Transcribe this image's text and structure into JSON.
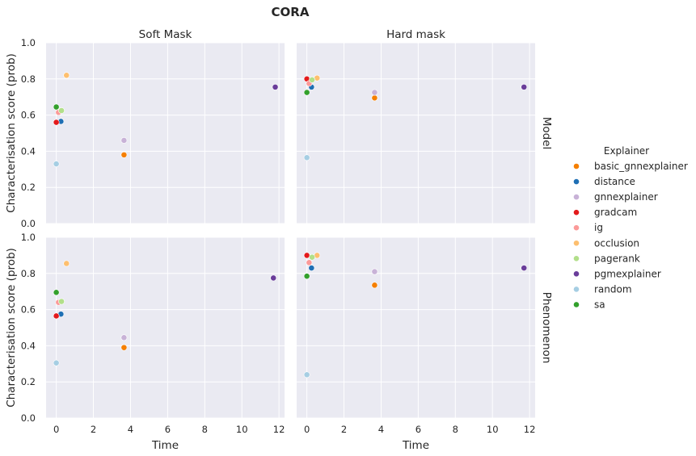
{
  "chart_data": {
    "type": "scatter",
    "title": "CORA",
    "xlabel": "Time",
    "ylabel": "Characterisation score (prob)",
    "xlim": [
      -0.55,
      12.3
    ],
    "ylim": [
      0,
      1
    ],
    "xticks": [
      "0",
      "2",
      "4",
      "6",
      "8",
      "10",
      "12"
    ],
    "yticks": [
      "0.0",
      "0.2",
      "0.4",
      "0.6",
      "0.8",
      "1.0"
    ],
    "columns": [
      "Soft Mask",
      "Hard mask"
    ],
    "rows": [
      "Model",
      "Phenomenon"
    ],
    "legend": {
      "title": "Explainer",
      "placement": "right",
      "entries": [
        {
          "name": "basic_gnnexplainer",
          "color": "#f57f00"
        },
        {
          "name": "distance",
          "color": "#1f6fb4"
        },
        {
          "name": "gnnexplainer",
          "color": "#c8b2d7"
        },
        {
          "name": "gradcam",
          "color": "#e31a1c"
        },
        {
          "name": "ig",
          "color": "#fb9a99"
        },
        {
          "name": "occlusion",
          "color": "#fdbf6f"
        },
        {
          "name": "pagerank",
          "color": "#b2df8a"
        },
        {
          "name": "pgmexplainer",
          "color": "#6a3d9a"
        },
        {
          "name": "random",
          "color": "#a6cee3"
        },
        {
          "name": "sa",
          "color": "#33a02c"
        }
      ]
    },
    "panels": [
      {
        "row": "Model",
        "col": "Soft Mask",
        "points": [
          {
            "explainer": "basic_gnnexplainer",
            "x": 3.65,
            "y": 0.38
          },
          {
            "explainer": "distance",
            "x": 0.25,
            "y": 0.565
          },
          {
            "explainer": "gnnexplainer",
            "x": 3.65,
            "y": 0.46
          },
          {
            "explainer": "gradcam",
            "x": 0.0,
            "y": 0.56
          },
          {
            "explainer": "ig",
            "x": 0.12,
            "y": 0.615
          },
          {
            "explainer": "occlusion",
            "x": 0.55,
            "y": 0.82
          },
          {
            "explainer": "pagerank",
            "x": 0.28,
            "y": 0.625
          },
          {
            "explainer": "pgmexplainer",
            "x": 11.8,
            "y": 0.755
          },
          {
            "explainer": "random",
            "x": 0.0,
            "y": 0.33
          },
          {
            "explainer": "sa",
            "x": 0.0,
            "y": 0.645
          }
        ]
      },
      {
        "row": "Model",
        "col": "Hard mask",
        "points": [
          {
            "explainer": "basic_gnnexplainer",
            "x": 3.65,
            "y": 0.695
          },
          {
            "explainer": "distance",
            "x": 0.25,
            "y": 0.755
          },
          {
            "explainer": "gnnexplainer",
            "x": 3.65,
            "y": 0.725
          },
          {
            "explainer": "gradcam",
            "x": 0.0,
            "y": 0.8
          },
          {
            "explainer": "ig",
            "x": 0.12,
            "y": 0.775
          },
          {
            "explainer": "occlusion",
            "x": 0.55,
            "y": 0.805
          },
          {
            "explainer": "pagerank",
            "x": 0.28,
            "y": 0.795
          },
          {
            "explainer": "pgmexplainer",
            "x": 11.7,
            "y": 0.755
          },
          {
            "explainer": "random",
            "x": 0.0,
            "y": 0.365
          },
          {
            "explainer": "sa",
            "x": 0.0,
            "y": 0.725
          }
        ]
      },
      {
        "row": "Phenomenon",
        "col": "Soft Mask",
        "points": [
          {
            "explainer": "basic_gnnexplainer",
            "x": 3.65,
            "y": 0.39
          },
          {
            "explainer": "distance",
            "x": 0.25,
            "y": 0.575
          },
          {
            "explainer": "gnnexplainer",
            "x": 3.65,
            "y": 0.445
          },
          {
            "explainer": "gradcam",
            "x": 0.0,
            "y": 0.565
          },
          {
            "explainer": "ig",
            "x": 0.12,
            "y": 0.64
          },
          {
            "explainer": "occlusion",
            "x": 0.55,
            "y": 0.855
          },
          {
            "explainer": "pagerank",
            "x": 0.28,
            "y": 0.645
          },
          {
            "explainer": "pgmexplainer",
            "x": 11.7,
            "y": 0.775
          },
          {
            "explainer": "random",
            "x": 0.0,
            "y": 0.305
          },
          {
            "explainer": "sa",
            "x": 0.0,
            "y": 0.695
          }
        ]
      },
      {
        "row": "Phenomenon",
        "col": "Hard mask",
        "points": [
          {
            "explainer": "basic_gnnexplainer",
            "x": 3.65,
            "y": 0.735
          },
          {
            "explainer": "distance",
            "x": 0.25,
            "y": 0.83
          },
          {
            "explainer": "gnnexplainer",
            "x": 3.65,
            "y": 0.81
          },
          {
            "explainer": "gradcam",
            "x": 0.0,
            "y": 0.9
          },
          {
            "explainer": "ig",
            "x": 0.12,
            "y": 0.86
          },
          {
            "explainer": "occlusion",
            "x": 0.55,
            "y": 0.9
          },
          {
            "explainer": "pagerank",
            "x": 0.28,
            "y": 0.89
          },
          {
            "explainer": "pgmexplainer",
            "x": 11.7,
            "y": 0.83
          },
          {
            "explainer": "random",
            "x": 0.0,
            "y": 0.24
          },
          {
            "explainer": "sa",
            "x": 0.0,
            "y": 0.785
          }
        ]
      }
    ]
  }
}
